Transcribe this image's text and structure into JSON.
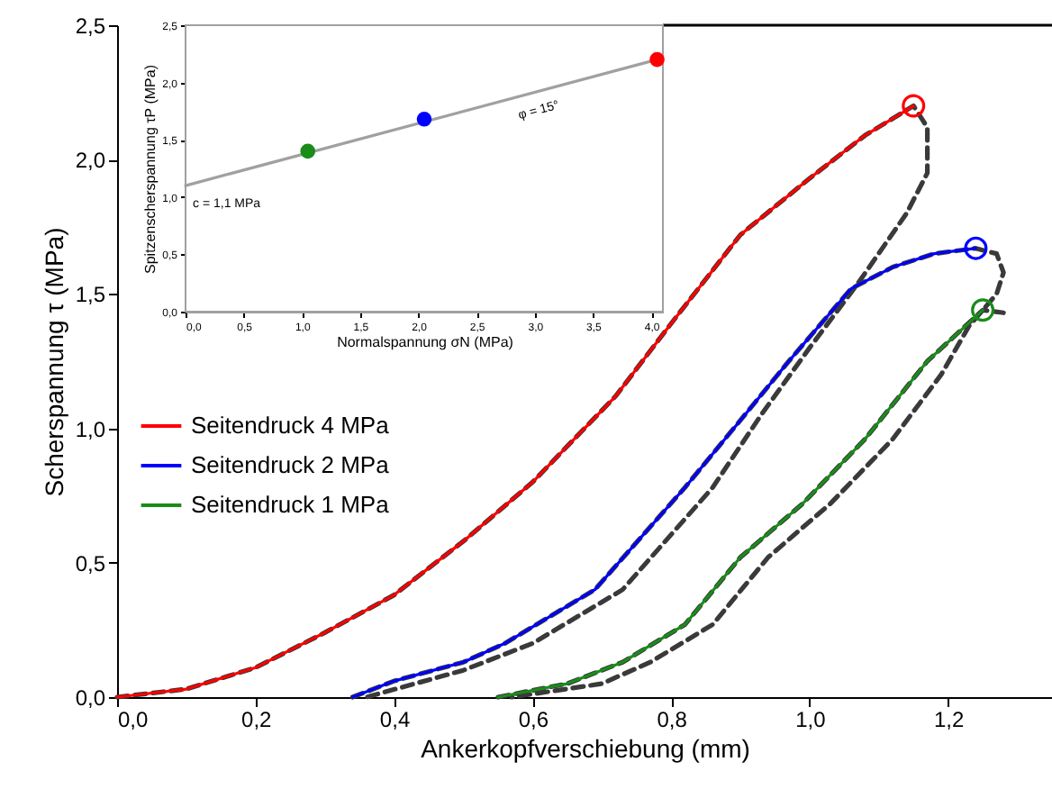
{
  "chart_data": [
    {
      "type": "line",
      "xlabel": "Ankerkopfverschiebung (mm)",
      "ylabel": "Scherspannung τ (MPa)",
      "xlim": [
        0,
        1.35
      ],
      "ylim": [
        0,
        2.5
      ],
      "xticks": [
        {
          "value": 0,
          "label": "0,0"
        },
        {
          "value": 0.2,
          "label": "0,2"
        },
        {
          "value": 0.4,
          "label": "0,4"
        },
        {
          "value": 0.6,
          "label": "0,6"
        },
        {
          "value": 0.8,
          "label": "0,8"
        },
        {
          "value": 1.0,
          "label": "1,0"
        },
        {
          "value": 1.2,
          "label": "1,2"
        }
      ],
      "yticks": [
        {
          "value": 0,
          "label": "0,0"
        },
        {
          "value": 0.5,
          "label": "0,5"
        },
        {
          "value": 1.0,
          "label": "1,0"
        },
        {
          "value": 1.5,
          "label": "1,5"
        },
        {
          "value": 2.0,
          "label": "2,0"
        },
        {
          "value": 2.5,
          "label": "2,5"
        }
      ],
      "grid": false,
      "legend": "left",
      "line_style": "solid",
      "series": [
        {
          "name": "Seitendruck 4 MPa",
          "color": "#ff0000",
          "x": [
            0,
            0.1,
            0.2,
            0.3,
            0.4,
            0.5,
            0.6,
            0.72,
            0.8,
            0.9,
            1.0,
            1.08,
            1.15
          ],
          "values": [
            0,
            0.03,
            0.11,
            0.24,
            0.38,
            0.58,
            0.8,
            1.12,
            1.39,
            1.72,
            1.93,
            2.09,
            2.2
          ]
        },
        {
          "name": "Seitendruck 2 MPa",
          "color": "#0000ff",
          "x": [
            0.34,
            0.4,
            0.5,
            0.56,
            0.69,
            0.82,
            0.9,
            0.97,
            1.06,
            1.12,
            1.18,
            1.24
          ],
          "values": [
            0,
            0.06,
            0.13,
            0.2,
            0.4,
            0.78,
            1.03,
            1.25,
            1.52,
            1.6,
            1.65,
            1.67
          ]
        },
        {
          "name": "Seitendruck 1 MPa",
          "color": "#1a8c1a",
          "x": [
            0.55,
            0.65,
            0.73,
            0.82,
            0.9,
            0.99,
            1.08,
            1.17,
            1.25
          ],
          "values": [
            0,
            0.05,
            0.13,
            0.27,
            0.52,
            0.72,
            0.96,
            1.25,
            1.44
          ]
        },
        {
          "type": "line",
          "line_style": "dashed",
          "color": "#3a3a3a",
          "x": [
            0,
            0.1,
            0.2,
            0.3,
            0.4,
            0.5,
            0.6,
            0.72,
            0.8,
            0.9,
            1.0,
            1.08,
            1.15,
            1.17,
            1.17,
            1.14,
            1.07,
            1.0,
            0.93,
            0.86,
            0.73,
            0.6,
            0.5,
            0.36
          ],
          "values": [
            0,
            0.03,
            0.11,
            0.24,
            0.38,
            0.58,
            0.8,
            1.12,
            1.39,
            1.72,
            1.93,
            2.09,
            2.2,
            2.12,
            1.95,
            1.8,
            1.54,
            1.3,
            1.05,
            0.78,
            0.4,
            0.2,
            0.1,
            0
          ]
        },
        {
          "type": "line",
          "line_style": "dashed",
          "color": "#3a3a3a",
          "x": [
            0.34,
            0.4,
            0.5,
            0.56,
            0.69,
            0.82,
            0.9,
            0.97,
            1.06,
            1.12,
            1.18,
            1.24,
            1.27,
            1.28,
            1.27,
            1.23,
            1.19,
            1.12,
            1.03,
            0.94,
            0.86,
            0.77,
            0.7,
            0.57
          ],
          "values": [
            0,
            0.06,
            0.13,
            0.2,
            0.4,
            0.78,
            1.03,
            1.25,
            1.52,
            1.6,
            1.65,
            1.67,
            1.65,
            1.58,
            1.5,
            1.38,
            1.2,
            0.96,
            0.72,
            0.52,
            0.27,
            0.13,
            0.05,
            0
          ]
        },
        {
          "type": "line",
          "line_style": "dashed",
          "color": "#3a3a3a",
          "x": [
            0.55,
            0.65,
            0.73,
            0.82,
            0.9,
            0.99,
            1.08,
            1.17,
            1.25,
            1.28
          ],
          "values": [
            0,
            0.05,
            0.13,
            0.27,
            0.52,
            0.72,
            0.96,
            1.25,
            1.44,
            1.43
          ]
        },
        {
          "type": "scatter",
          "marker": "circle",
          "color": "#ff0000",
          "x": [
            1.15
          ],
          "values": [
            2.2
          ]
        },
        {
          "type": "scatter",
          "marker": "circle",
          "color": "#0000ff",
          "x": [
            1.24
          ],
          "values": [
            1.67
          ]
        },
        {
          "type": "scatter",
          "marker": "circle",
          "color": "#1a8c1a",
          "x": [
            1.25
          ],
          "values": [
            1.44
          ]
        }
      ]
    },
    {
      "type": "scatter",
      "xlabel": "Normalspannung σN (MPa)",
      "ylabel": "Spitzenscherspannung τP (MPa)",
      "xlim": [
        0,
        4.1
      ],
      "ylim": [
        0,
        2.5
      ],
      "xticks": [
        {
          "value": 0,
          "label": "0,0"
        },
        {
          "value": 0.5,
          "label": "0,5"
        },
        {
          "value": 1.0,
          "label": "1,0"
        },
        {
          "value": 1.5,
          "label": "1,5"
        },
        {
          "value": 2.0,
          "label": "2,0"
        },
        {
          "value": 2.5,
          "label": "2,5"
        },
        {
          "value": 3.0,
          "label": "3,0"
        },
        {
          "value": 3.5,
          "label": "3,5"
        },
        {
          "value": 4.0,
          "label": "4,0"
        }
      ],
      "yticks": [
        {
          "value": 0,
          "label": "0,0"
        },
        {
          "value": 0.5,
          "label": "0,5"
        },
        {
          "value": 1.0,
          "label": "1,0"
        },
        {
          "value": 1.5,
          "label": "1,5"
        },
        {
          "value": 2.0,
          "label": "2,0"
        },
        {
          "value": 2.5,
          "label": "2,5"
        }
      ],
      "grid": false,
      "annotations": [
        {
          "text": "c = 1,1 MPa",
          "x": 0,
          "y": 1.1
        },
        {
          "text": "φ = 15°",
          "x": 2.7,
          "y": 1.83
        }
      ],
      "series": [
        {
          "type": "line",
          "color": "#a0a0a0",
          "x": [
            0,
            4.05
          ],
          "values": [
            1.1,
            2.2
          ]
        },
        {
          "type": "scatter",
          "marker": "circle",
          "colors": [
            "#1a8c1a",
            "#0000ff",
            "#ff0000"
          ],
          "x": [
            1.05,
            2.05,
            4.05
          ],
          "values": [
            1.4,
            1.68,
            2.2
          ]
        }
      ]
    }
  ]
}
